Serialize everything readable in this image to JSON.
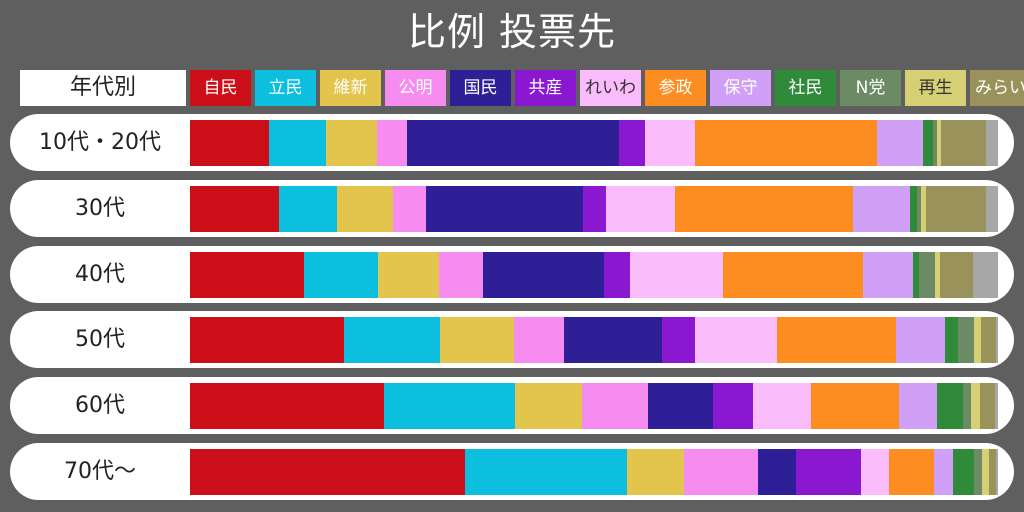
{
  "chart_data": {
    "type": "bar",
    "stacked": true,
    "normalized": true,
    "orientation": "horizontal",
    "title": "比例 投票先",
    "category_header": "年代別",
    "categories": [
      "10代・20代",
      "30代",
      "40代",
      "50代",
      "60代",
      "70代〜"
    ],
    "series": [
      {
        "name": "自民",
        "color": "#cc0e18",
        "values": [
          9.7,
          10.9,
          14.0,
          19.0,
          23.9,
          33.9
        ]
      },
      {
        "name": "立民",
        "color": "#0cbfdf",
        "values": [
          7.0,
          7.0,
          9.1,
          11.7,
          16.2,
          20.0
        ]
      },
      {
        "name": "維新",
        "color": "#e3c44c",
        "values": [
          6.2,
          6.9,
          7.5,
          9.1,
          8.2,
          7.1
        ]
      },
      {
        "name": "公明",
        "color": "#f78cf0",
        "values": [
          3.7,
          4.0,
          5.4,
          6.2,
          8.2,
          9.1
        ]
      },
      {
        "name": "国民",
        "color": "#2e1f96",
        "values": [
          26.0,
          19.2,
          14.9,
          12.1,
          8.0,
          4.7
        ]
      },
      {
        "name": "共産",
        "color": "#8a18d0",
        "values": [
          3.2,
          2.8,
          3.2,
          4.0,
          4.9,
          8.0
        ]
      },
      {
        "name": "れいわ",
        "color": "#fbbcfb",
        "values": [
          6.1,
          8.4,
          11.5,
          10.1,
          7.1,
          3.4
        ]
      },
      {
        "name": "参政",
        "color": "#fd8d21",
        "values": [
          22.3,
          21.7,
          17.2,
          14.6,
          10.9,
          5.6
        ]
      },
      {
        "name": "保守",
        "color": "#cfa0f6",
        "values": [
          5.6,
          6.9,
          6.2,
          6.1,
          4.7,
          2.4
        ]
      },
      {
        "name": "社民",
        "color": "#2f8a3a",
        "values": [
          1.2,
          0.9,
          0.7,
          1.6,
          3.2,
          2.5
        ]
      },
      {
        "name": "N党",
        "color": "#6c8a64",
        "values": [
          0.5,
          0.5,
          2.0,
          2.0,
          1.0,
          1.0
        ]
      },
      {
        "name": "再生",
        "color": "#d6cf73",
        "values": [
          0.5,
          0.6,
          0.6,
          0.8,
          1.1,
          0.9
        ]
      },
      {
        "name": "みらい",
        "color": "#9a925b",
        "values": [
          5.5,
          7.3,
          4.0,
          1.8,
          1.8,
          0.8
        ]
      },
      {
        "name": "",
        "color": "#a7a7a7",
        "values": [
          1.5,
          1.5,
          3.1,
          0.3,
          0.4,
          0.3
        ]
      }
    ]
  }
}
